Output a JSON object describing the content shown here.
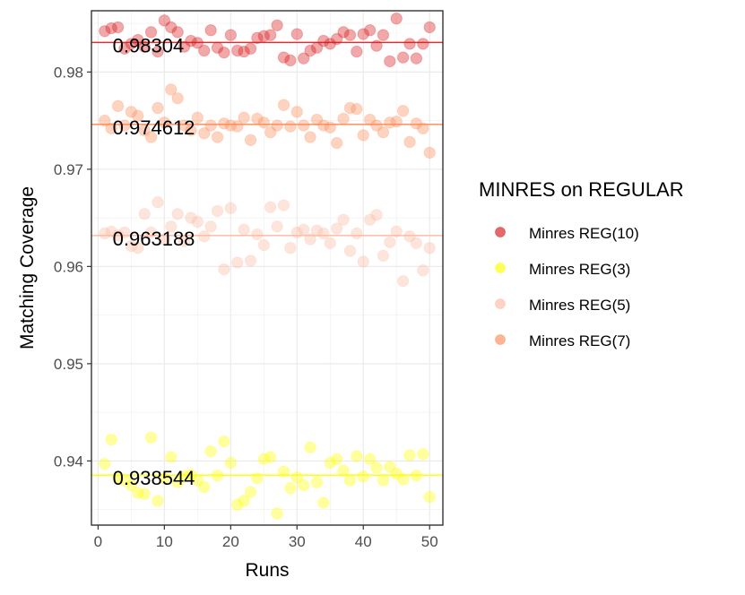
{
  "chart_data": {
    "type": "scatter",
    "xlabel": "Runs",
    "ylabel": "Matching Coverage",
    "xlim": [
      -1,
      52
    ],
    "ylim": [
      0.9334,
      0.9863
    ],
    "xticks": [
      0,
      10,
      20,
      30,
      40,
      50
    ],
    "yticks": [
      0.94,
      0.95,
      0.96,
      0.97,
      0.98
    ],
    "ytick_labels": [
      "0.94",
      "0.95",
      "0.96",
      "0.97",
      "0.98"
    ],
    "grid": true,
    "legend": {
      "title": "MINRES on REGULAR",
      "placement": "right",
      "entries": [
        {
          "label": "Minres REG(10)",
          "color": "#d7191c"
        },
        {
          "label": "Minres REG(3)",
          "color": "#ffff00"
        },
        {
          "label": "Minres REG(5)",
          "color": "#fdbba4"
        },
        {
          "label": "Minres REG(7)",
          "color": "#fc8d59"
        }
      ]
    },
    "series": [
      {
        "name": "Minres REG(10)",
        "color": "#d7191c",
        "mean": 0.98304,
        "mean_label": "0.98304",
        "x": [
          1,
          2,
          3,
          4,
          5,
          6,
          7,
          8,
          9,
          10,
          11,
          12,
          13,
          14,
          15,
          16,
          17,
          18,
          19,
          20,
          21,
          22,
          23,
          24,
          25,
          26,
          27,
          28,
          29,
          30,
          31,
          32,
          33,
          34,
          35,
          36,
          37,
          38,
          39,
          40,
          41,
          42,
          43,
          44,
          45,
          46,
          47,
          48,
          49,
          50
        ],
        "y": [
          0.9842,
          0.9845,
          0.9846,
          0.9824,
          0.9829,
          0.9833,
          0.9826,
          0.9841,
          0.9821,
          0.9853,
          0.9846,
          0.9841,
          0.9826,
          0.9832,
          0.983,
          0.9822,
          0.9843,
          0.9825,
          0.982,
          0.9838,
          0.9822,
          0.9821,
          0.9824,
          0.9835,
          0.9837,
          0.9838,
          0.9848,
          0.9815,
          0.9812,
          0.9839,
          0.9814,
          0.9822,
          0.9825,
          0.9832,
          0.9829,
          0.9834,
          0.9841,
          0.9838,
          0.9821,
          0.9839,
          0.9843,
          0.9827,
          0.9838,
          0.9811,
          0.9855,
          0.9815,
          0.9829,
          0.9814,
          0.9829,
          0.9846
        ]
      },
      {
        "name": "Minres REG(7)",
        "color": "#fc8d59",
        "mean": 0.974612,
        "mean_label": "0.974612",
        "x": [
          1,
          2,
          3,
          4,
          5,
          6,
          7,
          8,
          9,
          10,
          11,
          12,
          13,
          14,
          15,
          16,
          17,
          18,
          19,
          20,
          21,
          22,
          23,
          24,
          25,
          26,
          27,
          28,
          29,
          30,
          31,
          32,
          33,
          34,
          35,
          36,
          37,
          38,
          39,
          40,
          41,
          42,
          43,
          44,
          45,
          46,
          47,
          48,
          49,
          50
        ],
        "y": [
          0.975,
          0.9742,
          0.9765,
          0.9745,
          0.9759,
          0.9755,
          0.974,
          0.9733,
          0.9763,
          0.9748,
          0.9782,
          0.9773,
          0.9745,
          0.974,
          0.9753,
          0.9737,
          0.9745,
          0.9733,
          0.9747,
          0.9745,
          0.9744,
          0.9753,
          0.973,
          0.9752,
          0.9748,
          0.9738,
          0.9745,
          0.9766,
          0.9744,
          0.9759,
          0.9745,
          0.9733,
          0.9751,
          0.9745,
          0.9743,
          0.9727,
          0.9752,
          0.9763,
          0.9762,
          0.9735,
          0.9751,
          0.9745,
          0.9738,
          0.9748,
          0.9749,
          0.976,
          0.9728,
          0.9747,
          0.9742,
          0.9717
        ]
      },
      {
        "name": "Minres REG(5)",
        "color": "#fdbba4",
        "mean": 0.963188,
        "mean_label": "0.963188",
        "x": [
          1,
          2,
          3,
          4,
          5,
          6,
          7,
          8,
          9,
          10,
          11,
          12,
          13,
          14,
          15,
          16,
          17,
          18,
          19,
          20,
          21,
          22,
          23,
          24,
          25,
          26,
          27,
          28,
          29,
          30,
          31,
          32,
          33,
          34,
          35,
          36,
          37,
          38,
          39,
          40,
          41,
          42,
          43,
          44,
          45,
          46,
          47,
          48,
          49,
          50
        ],
        "y": [
          0.9634,
          0.9636,
          0.9632,
          0.9635,
          0.9621,
          0.9619,
          0.9654,
          0.9635,
          0.9666,
          0.9628,
          0.9641,
          0.9654,
          0.9626,
          0.965,
          0.9646,
          0.9631,
          0.9641,
          0.9657,
          0.9597,
          0.966,
          0.9604,
          0.9638,
          0.9606,
          0.9633,
          0.9622,
          0.9661,
          0.9641,
          0.9663,
          0.9619,
          0.9635,
          0.9638,
          0.9628,
          0.9637,
          0.9634,
          0.9624,
          0.9639,
          0.9648,
          0.9616,
          0.9634,
          0.9605,
          0.9648,
          0.9653,
          0.9611,
          0.9625,
          0.9636,
          0.9585,
          0.9631,
          0.9624,
          0.9596,
          0.9619
        ]
      },
      {
        "name": "Minres REG(3)",
        "color": "#ffff00",
        "mean": 0.938544,
        "mean_label": "0.938544",
        "x": [
          1,
          2,
          3,
          4,
          5,
          6,
          7,
          8,
          9,
          10,
          11,
          12,
          13,
          14,
          15,
          16,
          17,
          18,
          19,
          20,
          21,
          22,
          23,
          24,
          25,
          26,
          27,
          28,
          29,
          30,
          31,
          32,
          33,
          34,
          35,
          36,
          37,
          38,
          39,
          40,
          41,
          42,
          43,
          44,
          45,
          46,
          47,
          48,
          49,
          50
        ],
        "y": [
          0.9397,
          0.9422,
          0.9383,
          0.938,
          0.9375,
          0.9367,
          0.9366,
          0.9424,
          0.9359,
          0.9382,
          0.9404,
          0.9378,
          0.9384,
          0.9386,
          0.938,
          0.9373,
          0.941,
          0.9385,
          0.942,
          0.9398,
          0.9355,
          0.9359,
          0.9368,
          0.9382,
          0.9402,
          0.9404,
          0.9346,
          0.9389,
          0.9372,
          0.9383,
          0.9375,
          0.9414,
          0.9378,
          0.9357,
          0.9398,
          0.9402,
          0.939,
          0.938,
          0.9405,
          0.9384,
          0.9402,
          0.9393,
          0.938,
          0.9394,
          0.9387,
          0.9381,
          0.9406,
          0.9385,
          0.9407,
          0.9363
        ]
      }
    ]
  }
}
